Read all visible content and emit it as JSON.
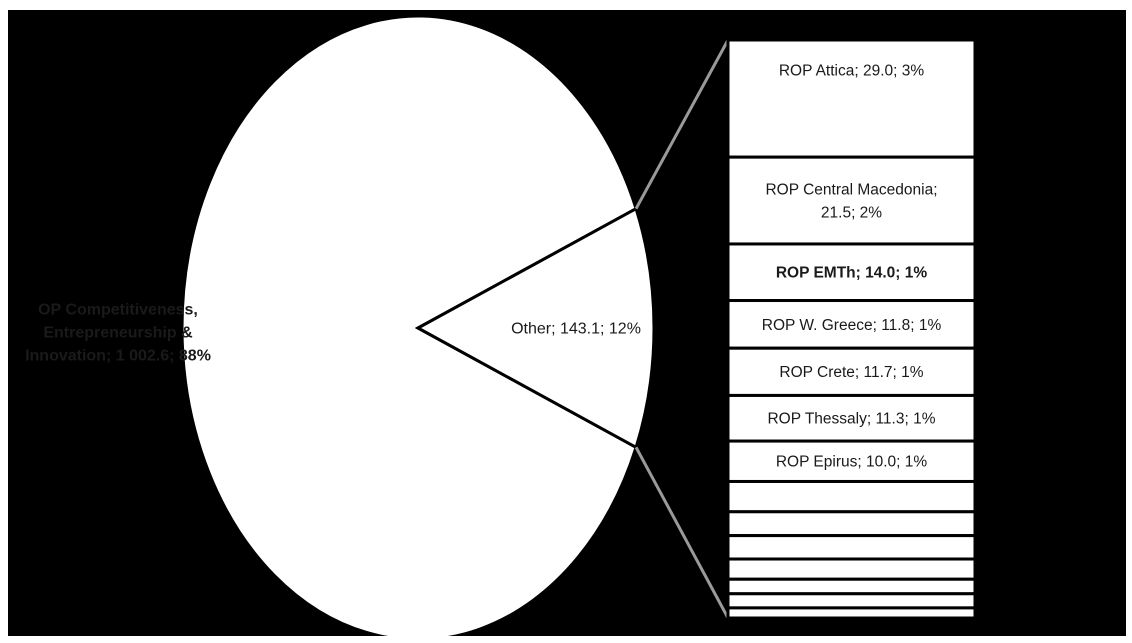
{
  "chart_data": {
    "type": "pie",
    "variant": "bar-of-pie",
    "value_separator": "; ",
    "pie": [
      {
        "label": "OP Competitiveness, Entrepreneurship & Innovation",
        "display_label": "OP Competitiveness, Entrepreneurship & Innovation; 1 002.6; 88%",
        "value": 1002.6,
        "percent": "88%"
      },
      {
        "label": "Other",
        "display_label": "Other;  143.1; 12%",
        "value": 143.1,
        "percent": "12%"
      }
    ],
    "breakdown_of": "Other",
    "breakdown_total": 143.1,
    "breakdown": [
      {
        "label": "ROP Attica",
        "display_label": "ROP Attica;  29.0; 3%",
        "value": 29.0,
        "percent": "3%"
      },
      {
        "label": "ROP Central Macedonia",
        "display_label": "ROP Central Macedonia; 21.5; 2%",
        "value": 21.5,
        "percent": "2%"
      },
      {
        "label": "ROP EMTh",
        "display_label": "ROP EMTh;  14.0; 1%",
        "value": 14.0,
        "percent": "1%"
      },
      {
        "label": "ROP W. Greece",
        "display_label": "ROP W. Greece;  11.8; 1%",
        "value": 11.8,
        "percent": "1%"
      },
      {
        "label": "ROP Crete",
        "display_label": "ROP Crete;  11.7; 1%",
        "value": 11.7,
        "percent": "1%"
      },
      {
        "label": "ROP Thessaly",
        "display_label": "ROP Thessaly;  11.3; 1%",
        "value": 11.3,
        "percent": "1%"
      },
      {
        "label": "ROP Epirus",
        "display_label": "ROP Epirus;  10.0; 1%",
        "value": 10.0,
        "percent": "1%"
      },
      {
        "label": "",
        "display_label": "",
        "value": 7.5
      },
      {
        "label": "",
        "display_label": "",
        "value": 5.9
      },
      {
        "label": "",
        "display_label": "",
        "value": 5.8
      },
      {
        "label": "",
        "display_label": "",
        "value": 5.0
      },
      {
        "label": "",
        "display_label": "",
        "value": 3.6
      },
      {
        "label": "",
        "display_label": "",
        "value": 3.5
      },
      {
        "label": "",
        "display_label": "",
        "value": 2.5
      }
    ],
    "colors": {
      "background": "#000000",
      "fill": "#ffffff",
      "stroke": "#000000",
      "connector": "#9a9a9a"
    },
    "bold_labels": [
      "OP Competitiveness, Entrepreneurship & Innovation",
      "ROP EMTh"
    ]
  }
}
